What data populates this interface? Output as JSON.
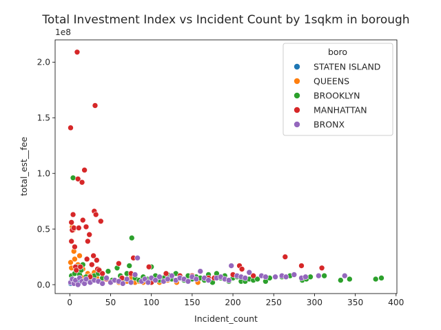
{
  "chart_data": {
    "type": "scatter",
    "title": "Total Investment Index vs Incident Count by 1sqkm in borough",
    "xlabel": "Incident_count",
    "ylabel": "total_est__fee",
    "y_offset_text": "1e8",
    "y_scale_multiplier": 100000000,
    "xlim": [
      -18,
      401
    ],
    "ylim": [
      -0.08,
      2.2
    ],
    "x_ticks": [
      0,
      50,
      100,
      150,
      200,
      250,
      300,
      350,
      400
    ],
    "x_tick_labels": [
      "0",
      "50",
      "100",
      "150",
      "200",
      "250",
      "300",
      "350",
      "400"
    ],
    "y_ticks": [
      0.0,
      0.5,
      1.0,
      1.5,
      2.0
    ],
    "y_tick_labels": [
      "0.0",
      "0.5",
      "1.0",
      "1.5",
      "2.0"
    ],
    "grid": false,
    "legend": {
      "title": "boro",
      "placement": "top-right"
    },
    "series": [
      {
        "name": "STATEN ISLAND",
        "color": "#1f77b4",
        "points": [
          [
            1,
            0.01
          ],
          [
            3,
            0.02
          ],
          [
            5,
            0.03
          ],
          [
            8,
            0.01
          ],
          [
            10,
            0.04
          ],
          [
            12,
            0.02
          ],
          [
            15,
            0.05
          ],
          [
            18,
            0.01
          ]
        ]
      },
      {
        "name": "QUEENS",
        "color": "#ff7f0e",
        "points": [
          [
            1,
            0.2
          ],
          [
            2,
            0.15
          ],
          [
            3,
            0.52
          ],
          [
            4,
            0.49
          ],
          [
            5,
            0.3
          ],
          [
            6,
            0.23
          ],
          [
            8,
            0.12
          ],
          [
            10,
            0.18
          ],
          [
            12,
            0.26
          ],
          [
            14,
            0.07
          ],
          [
            16,
            0.14
          ],
          [
            20,
            0.05
          ],
          [
            22,
            0.1
          ],
          [
            25,
            0.08
          ],
          [
            28,
            0.04
          ],
          [
            30,
            0.11
          ],
          [
            33,
            0.06
          ],
          [
            35,
            0.14
          ],
          [
            38,
            0.03
          ],
          [
            40,
            0.02
          ],
          [
            45,
            0.05
          ],
          [
            50,
            0.03
          ],
          [
            55,
            0.04
          ],
          [
            60,
            0.02
          ],
          [
            65,
            0.05
          ],
          [
            70,
            0.03
          ],
          [
            75,
            0.06
          ],
          [
            80,
            0.02
          ],
          [
            85,
            0.03
          ],
          [
            90,
            0.02
          ],
          [
            95,
            0.04
          ],
          [
            100,
            0.03
          ],
          [
            110,
            0.02
          ],
          [
            120,
            0.04
          ],
          [
            131,
            0.02
          ],
          [
            157,
            0.02
          ]
        ]
      },
      {
        "name": "BROOKLYN",
        "color": "#2ca02c",
        "points": [
          [
            2,
            0.08
          ],
          [
            4,
            0.96
          ],
          [
            6,
            0.1
          ],
          [
            8,
            0.14
          ],
          [
            10,
            0.16
          ],
          [
            12,
            0.09
          ],
          [
            14,
            0.13
          ],
          [
            16,
            0.18
          ],
          [
            20,
            0.07
          ],
          [
            25,
            0.05
          ],
          [
            30,
            0.08
          ],
          [
            35,
            0.1
          ],
          [
            40,
            0.06
          ],
          [
            47,
            0.12
          ],
          [
            52,
            0.04
          ],
          [
            58,
            0.15
          ],
          [
            62,
            0.08
          ],
          [
            66,
            0.05
          ],
          [
            70,
            0.1
          ],
          [
            73,
            0.17
          ],
          [
            76,
            0.42
          ],
          [
            80,
            0.06
          ],
          [
            85,
            0.04
          ],
          [
            90,
            0.07
          ],
          [
            95,
            0.05
          ],
          [
            100,
            0.16
          ],
          [
            105,
            0.08
          ],
          [
            110,
            0.04
          ],
          [
            115,
            0.06
          ],
          [
            120,
            0.09
          ],
          [
            125,
            0.05
          ],
          [
            130,
            0.1
          ],
          [
            135,
            0.06
          ],
          [
            140,
            0.04
          ],
          [
            145,
            0.08
          ],
          [
            150,
            0.05
          ],
          [
            155,
            0.07
          ],
          [
            160,
            0.06
          ],
          [
            165,
            0.04
          ],
          [
            170,
            0.09
          ],
          [
            175,
            0.02
          ],
          [
            180,
            0.1
          ],
          [
            185,
            0.06
          ],
          [
            190,
            0.08
          ],
          [
            195,
            0.03
          ],
          [
            200,
            0.06
          ],
          [
            205,
            0.07
          ],
          [
            210,
            0.03
          ],
          [
            215,
            0.03
          ],
          [
            220,
            0.05
          ],
          [
            225,
            0.04
          ],
          [
            230,
            0.05
          ],
          [
            240,
            0.03
          ],
          [
            245,
            0.06
          ],
          [
            260,
            0.07
          ],
          [
            270,
            0.08
          ],
          [
            285,
            0.04
          ],
          [
            290,
            0.05
          ],
          [
            295,
            0.07
          ],
          [
            305,
            0.08
          ],
          [
            312,
            0.08
          ],
          [
            332,
            0.04
          ],
          [
            343,
            0.05
          ],
          [
            375,
            0.05
          ],
          [
            382,
            0.06
          ]
        ]
      },
      {
        "name": "MANHATTAN",
        "color": "#d62728",
        "points": [
          [
            1,
            1.41
          ],
          [
            2,
            0.56
          ],
          [
            2,
            0.39
          ],
          [
            3,
            0.49
          ],
          [
            4,
            0.63
          ],
          [
            5,
            0.51
          ],
          [
            6,
            0.34
          ],
          [
            7,
            0.16
          ],
          [
            8,
            0.13
          ],
          [
            9,
            2.09
          ],
          [
            10,
            0.95
          ],
          [
            11,
            0.51
          ],
          [
            13,
            0.16
          ],
          [
            15,
            0.92
          ],
          [
            16,
            0.58
          ],
          [
            18,
            1.03
          ],
          [
            20,
            0.52
          ],
          [
            21,
            0.23
          ],
          [
            22,
            0.39
          ],
          [
            24,
            0.45
          ],
          [
            25,
            0.07
          ],
          [
            27,
            0.18
          ],
          [
            29,
            0.26
          ],
          [
            30,
            0.66
          ],
          [
            31,
            1.61
          ],
          [
            32,
            0.63
          ],
          [
            33,
            0.22
          ],
          [
            34,
            0.14
          ],
          [
            36,
            0.13
          ],
          [
            38,
            0.57
          ],
          [
            40,
            0.1
          ],
          [
            45,
            0.05
          ],
          [
            60,
            0.19
          ],
          [
            64,
            0.06
          ],
          [
            75,
            0.1
          ],
          [
            78,
            0.24
          ],
          [
            97,
            0.16
          ],
          [
            100,
            0.02
          ],
          [
            118,
            0.1
          ],
          [
            135,
            0.08
          ],
          [
            150,
            0.08
          ],
          [
            170,
            0.06
          ],
          [
            177,
            0.06
          ],
          [
            200,
            0.09
          ],
          [
            208,
            0.17
          ],
          [
            211,
            0.14
          ],
          [
            225,
            0.08
          ],
          [
            264,
            0.25
          ],
          [
            284,
            0.17
          ],
          [
            309,
            0.15
          ]
        ]
      },
      {
        "name": "BRONX",
        "color": "#9467bd",
        "points": [
          [
            1,
            0.02
          ],
          [
            3,
            0.05
          ],
          [
            5,
            0.01
          ],
          [
            7,
            0.04
          ],
          [
            10,
            0.0
          ],
          [
            12,
            0.06
          ],
          [
            15,
            0.03
          ],
          [
            18,
            0.01
          ],
          [
            20,
            0.05
          ],
          [
            25,
            0.02
          ],
          [
            30,
            0.04
          ],
          [
            35,
            0.03
          ],
          [
            40,
            0.01
          ],
          [
            45,
            0.06
          ],
          [
            50,
            0.02
          ],
          [
            55,
            0.04
          ],
          [
            60,
            0.03
          ],
          [
            65,
            0.01
          ],
          [
            70,
            0.05
          ],
          [
            75,
            0.02
          ],
          [
            80,
            0.09
          ],
          [
            83,
            0.24
          ],
          [
            88,
            0.03
          ],
          [
            92,
            0.05
          ],
          [
            96,
            0.02
          ],
          [
            100,
            0.06
          ],
          [
            105,
            0.04
          ],
          [
            110,
            0.07
          ],
          [
            115,
            0.03
          ],
          [
            120,
            0.05
          ],
          [
            125,
            0.08
          ],
          [
            130,
            0.04
          ],
          [
            135,
            0.06
          ],
          [
            140,
            0.05
          ],
          [
            145,
            0.03
          ],
          [
            150,
            0.07
          ],
          [
            155,
            0.05
          ],
          [
            160,
            0.12
          ],
          [
            165,
            0.06
          ],
          [
            170,
            0.04
          ],
          [
            180,
            0.06
          ],
          [
            185,
            0.07
          ],
          [
            190,
            0.05
          ],
          [
            195,
            0.04
          ],
          [
            198,
            0.17
          ],
          [
            205,
            0.08
          ],
          [
            210,
            0.07
          ],
          [
            215,
            0.06
          ],
          [
            220,
            0.11
          ],
          [
            235,
            0.08
          ],
          [
            240,
            0.07
          ],
          [
            252,
            0.07
          ],
          [
            260,
            0.08
          ],
          [
            265,
            0.07
          ],
          [
            275,
            0.09
          ],
          [
            284,
            0.06
          ],
          [
            289,
            0.07
          ],
          [
            305,
            0.08
          ],
          [
            337,
            0.08
          ]
        ]
      }
    ]
  }
}
